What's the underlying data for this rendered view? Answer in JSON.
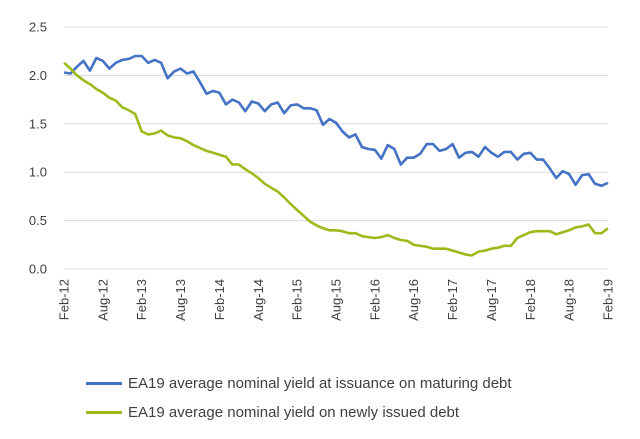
{
  "chart_data": {
    "type": "line",
    "title": "",
    "xlabel": "",
    "ylabel": "",
    "ylim": [
      0,
      2.5
    ],
    "yticks": [
      "0.0",
      "0.5",
      "1.0",
      "1.5",
      "2.0",
      "2.5"
    ],
    "xticks": [
      "Feb-12",
      "Aug-12",
      "Feb-13",
      "Aug-13",
      "Feb-14",
      "Aug-14",
      "Feb-15",
      "Aug-15",
      "Feb-16",
      "Aug-16",
      "Feb-17",
      "Aug-17",
      "Feb-18",
      "Aug-18",
      "Feb-19"
    ],
    "grid": "horizontal",
    "legend_position": "bottom",
    "x_start": "Feb-12",
    "x_end": "Feb-19",
    "series": [
      {
        "name": "EA19 average nominal yield at issuance on maturing debt",
        "color": "#4472C4",
        "values": [
          2.03,
          2.02,
          2.09,
          2.15,
          2.05,
          2.18,
          2.15,
          2.07,
          2.13,
          2.16,
          2.17,
          2.2,
          2.2,
          2.13,
          2.16,
          2.13,
          1.97,
          2.04,
          2.07,
          2.02,
          2.04,
          1.93,
          1.81,
          1.84,
          1.82,
          1.7,
          1.75,
          1.72,
          1.63,
          1.73,
          1.71,
          1.63,
          1.7,
          1.72,
          1.61,
          1.69,
          1.7,
          1.66,
          1.66,
          1.64,
          1.49,
          1.55,
          1.51,
          1.42,
          1.36,
          1.39,
          1.26,
          1.24,
          1.23,
          1.14,
          1.28,
          1.24,
          1.08,
          1.15,
          1.15,
          1.19,
          1.29,
          1.29,
          1.22,
          1.24,
          1.29,
          1.15,
          1.2,
          1.21,
          1.16,
          1.26,
          1.2,
          1.16,
          1.21,
          1.21,
          1.13,
          1.19,
          1.2,
          1.13,
          1.13,
          1.04,
          0.94,
          1.01,
          0.98,
          0.87,
          0.97,
          0.98,
          0.88,
          0.86,
          0.89
        ]
      },
      {
        "name": "EA19 average nominal yield on newly issued debt",
        "color": "#9BBB1B",
        "values": [
          2.13,
          2.07,
          2.0,
          1.95,
          1.91,
          1.86,
          1.82,
          1.77,
          1.74,
          1.67,
          1.64,
          1.6,
          1.42,
          1.39,
          1.4,
          1.43,
          1.38,
          1.36,
          1.35,
          1.32,
          1.28,
          1.25,
          1.22,
          1.2,
          1.18,
          1.16,
          1.08,
          1.08,
          1.03,
          0.99,
          0.94,
          0.88,
          0.84,
          0.8,
          0.74,
          0.67,
          0.61,
          0.55,
          0.49,
          0.45,
          0.42,
          0.4,
          0.4,
          0.39,
          0.37,
          0.37,
          0.34,
          0.33,
          0.32,
          0.33,
          0.35,
          0.32,
          0.3,
          0.29,
          0.25,
          0.24,
          0.23,
          0.21,
          0.21,
          0.21,
          0.19,
          0.17,
          0.15,
          0.14,
          0.18,
          0.19,
          0.21,
          0.22,
          0.24,
          0.24,
          0.32,
          0.35,
          0.38,
          0.39,
          0.39,
          0.39,
          0.36,
          0.38,
          0.4,
          0.43,
          0.44,
          0.46,
          0.37,
          0.37,
          0.42
        ]
      }
    ]
  }
}
